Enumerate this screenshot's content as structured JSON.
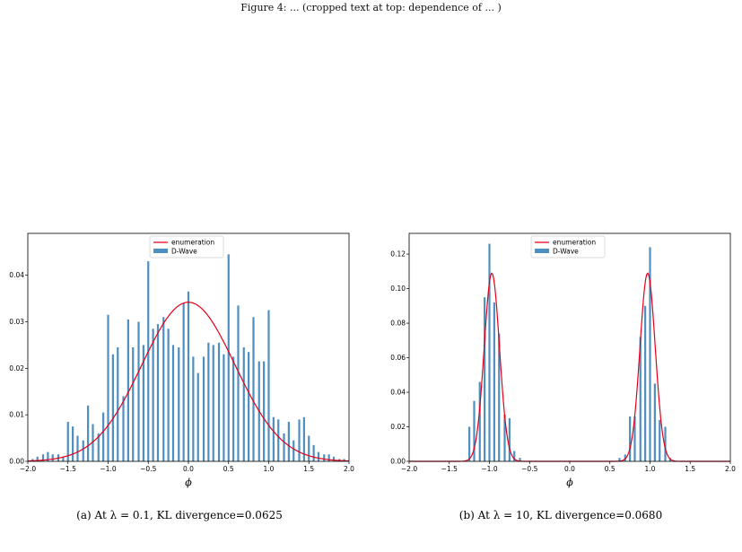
{
  "top_caption": "Figure 4: ... (cropped text at top: dependence of ... )",
  "figures": [
    {
      "caption": "(a) At λ = 0.1, KL divergence=0.0625",
      "legend": [
        "enumeration",
        "D-Wave"
      ]
    },
    {
      "caption": "(b) At λ = 10, KL divergence=0.0680",
      "legend": [
        "enumeration",
        "D-Wave"
      ]
    }
  ],
  "chart_data": [
    {
      "type": "bar",
      "title": "",
      "xlabel": "ϕ",
      "ylabel": "",
      "xlim": [
        -2.0,
        2.0
      ],
      "ylim": [
        0,
        0.049
      ],
      "xticks": [
        "−2.0",
        "−1.5",
        "−1.0",
        "−0.5",
        "0.0",
        "0.5",
        "1.0",
        "1.5",
        "2.0"
      ],
      "yticks": [
        "0.00",
        "0.01",
        "0.02",
        "0.03",
        "0.04"
      ],
      "colors": {
        "bar": "#4f8fbf",
        "line": "#e3001b"
      },
      "legend": {
        "position": "top-center"
      },
      "series": [
        {
          "name": "D-Wave",
          "kind": "bar",
          "x": [
            -1.94,
            -1.88,
            -1.81,
            -1.75,
            -1.69,
            -1.62,
            -1.56,
            -1.5,
            -1.44,
            -1.38,
            -1.31,
            -1.25,
            -1.19,
            -1.12,
            -1.06,
            -1.0,
            -0.94,
            -0.88,
            -0.81,
            -0.75,
            -0.69,
            -0.62,
            -0.56,
            -0.5,
            -0.44,
            -0.38,
            -0.31,
            -0.25,
            -0.19,
            -0.12,
            -0.06,
            0.0,
            0.06,
            0.12,
            0.19,
            0.25,
            0.31,
            0.38,
            0.44,
            0.5,
            0.56,
            0.62,
            0.69,
            0.75,
            0.81,
            0.88,
            0.94,
            1.0,
            1.06,
            1.12,
            1.19,
            1.25,
            1.31,
            1.38,
            1.44,
            1.5,
            1.56,
            1.62,
            1.69,
            1.75,
            1.81,
            1.88,
            1.94
          ],
          "values": [
            0.0005,
            0.001,
            0.0015,
            0.002,
            0.0015,
            0.0015,
            0.001,
            0.0085,
            0.0075,
            0.0055,
            0.0045,
            0.012,
            0.008,
            0.006,
            0.0105,
            0.0315,
            0.023,
            0.0245,
            0.014,
            0.0305,
            0.0245,
            0.03,
            0.025,
            0.043,
            0.0285,
            0.0295,
            0.031,
            0.0285,
            0.025,
            0.0245,
            0.034,
            0.0365,
            0.0225,
            0.019,
            0.0225,
            0.0255,
            0.025,
            0.0255,
            0.023,
            0.0445,
            0.0225,
            0.0335,
            0.0245,
            0.0235,
            0.031,
            0.0215,
            0.0215,
            0.0325,
            0.0095,
            0.009,
            0.006,
            0.0085,
            0.0045,
            0.009,
            0.0095,
            0.0055,
            0.0035,
            0.002,
            0.0015,
            0.0015,
            0.001,
            0.0005,
            0.0005
          ]
        },
        {
          "name": "enumeration",
          "kind": "line",
          "mean": 0.0,
          "std": 0.58,
          "peak": 0.0342,
          "x_range": [
            -2.0,
            2.0
          ]
        }
      ]
    },
    {
      "type": "bar",
      "title": "",
      "xlabel": "ϕ",
      "ylabel": "",
      "xlim": [
        -2.0,
        2.0
      ],
      "ylim": [
        0,
        0.132
      ],
      "xticks": [
        "−2.0",
        "−1.5",
        "−1.0",
        "−0.5",
        "0.0",
        "0.5",
        "1.0",
        "1.5",
        "2.0"
      ],
      "yticks": [
        "0.00",
        "0.02",
        "0.04",
        "0.06",
        "0.08",
        "0.10",
        "0.12"
      ],
      "colors": {
        "bar": "#4f8fbf",
        "line": "#e3001b"
      },
      "legend": {
        "position": "top-center"
      },
      "series": [
        {
          "name": "D-Wave",
          "kind": "bar",
          "x": [
            -1.25,
            -1.19,
            -1.12,
            -1.06,
            -1.0,
            -0.94,
            -0.88,
            -0.81,
            -0.75,
            -0.69,
            -0.62,
            0.62,
            0.69,
            0.75,
            0.81,
            0.88,
            0.94,
            1.0,
            1.06,
            1.12,
            1.19,
            1.25
          ],
          "values": [
            0.02,
            0.035,
            0.046,
            0.095,
            0.126,
            0.092,
            0.074,
            0.027,
            0.025,
            0.006,
            0.002,
            0.002,
            0.004,
            0.026,
            0.026,
            0.072,
            0.09,
            0.124,
            0.045,
            0.024,
            0.02,
            0.002
          ]
        },
        {
          "name": "enumeration",
          "kind": "line",
          "modes": [
            -0.97,
            0.97
          ],
          "std": 0.095,
          "peak": 0.109,
          "x_range": [
            -2.0,
            2.0
          ]
        }
      ]
    }
  ]
}
